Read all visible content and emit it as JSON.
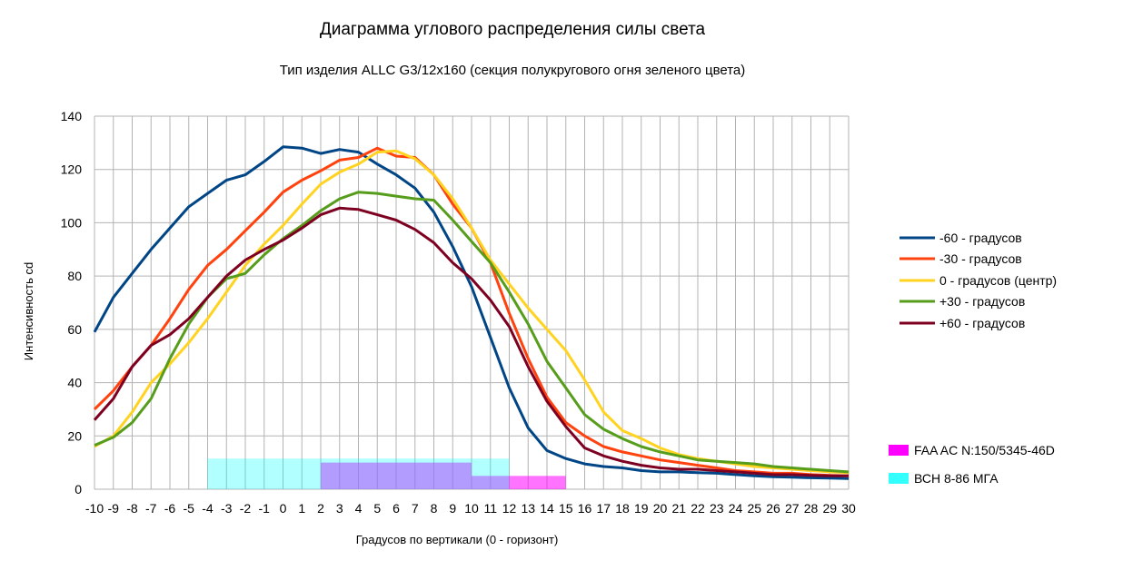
{
  "chart_data": {
    "type": "line",
    "title": "Диаграмма углового распределения силы света",
    "subtitle": "Тип изделия ALLC G3/12x160 (секция полукругового огня зеленого цвета)",
    "xlabel": "Градусов по вертикали (0 - горизонт)",
    "ylabel": "Интенсивность cd",
    "xlim": [
      -10,
      30
    ],
    "ylim": [
      0,
      140
    ],
    "grid": true,
    "legend_placement": "right",
    "x": [
      -10,
      -9,
      -8,
      -7,
      -6,
      -5,
      -4,
      -3,
      -2,
      -1,
      0,
      1,
      2,
      3,
      4,
      5,
      6,
      7,
      8,
      9,
      10,
      11,
      12,
      13,
      14,
      15,
      16,
      17,
      18,
      19,
      20,
      21,
      22,
      23,
      24,
      25,
      26,
      27,
      28,
      29,
      30
    ],
    "x_tick_labels": [
      "-10",
      "-9",
      "-8",
      "-7",
      "-6",
      "-5",
      "-4",
      "-3",
      "-2",
      "-1",
      "0",
      "1",
      "2",
      "3",
      "4",
      "5",
      "6",
      "7",
      "8",
      "9",
      "10",
      "11",
      "12",
      "13",
      "14",
      "15",
      "16",
      "17",
      "18",
      "19",
      "20",
      "21",
      "22",
      "23",
      "24",
      "25",
      "26",
      "27",
      "28",
      "29",
      "30"
    ],
    "y_ticks": [
      0,
      20,
      40,
      60,
      80,
      100,
      120,
      140
    ],
    "y_tick_labels": [
      "0",
      "20",
      "40",
      "60",
      "80",
      "100",
      "120",
      "140"
    ],
    "series": [
      {
        "name": "-60 - градусов",
        "color": "#004586",
        "values": [
          59,
          72,
          81,
          90,
          98,
          106,
          111,
          116,
          118,
          123,
          128.5,
          128,
          126,
          127.5,
          126.5,
          122,
          118,
          113,
          104,
          91,
          76,
          57,
          38,
          23,
          14.5,
          11.5,
          9.5,
          8.5,
          8,
          7,
          6.5,
          6.5,
          6.2,
          6,
          5.5,
          5,
          4.7,
          4.5,
          4.3,
          4.2,
          4
        ]
      },
      {
        "name": "-30 - градусов",
        "color": "#ff420e",
        "values": [
          30,
          37,
          46,
          54,
          64,
          75,
          84,
          90,
          97,
          104,
          111.5,
          116,
          119.5,
          123.5,
          124.5,
          128,
          125,
          124.5,
          118,
          107,
          98,
          85,
          66,
          49,
          34.5,
          25,
          20,
          16,
          14,
          12.5,
          11,
          10,
          9,
          8,
          7,
          6.5,
          6,
          6,
          5.5,
          5.2,
          5
        ]
      },
      {
        "name": "0 - градусов (центр)",
        "color": "#ffd320",
        "values": [
          16,
          20,
          29,
          40,
          47,
          55,
          64,
          74,
          84,
          92,
          99,
          107,
          114.5,
          119,
          122,
          126.5,
          127,
          124,
          118,
          109,
          98,
          86,
          77,
          68,
          60,
          52,
          41,
          29,
          22,
          19,
          15.5,
          13,
          11.5,
          10.5,
          9.5,
          8.5,
          8,
          7.5,
          7,
          6.5,
          6.2
        ]
      },
      {
        "name": "+30 - градусов",
        "color": "#579d1c",
        "values": [
          16.5,
          19.5,
          25,
          34,
          49,
          62,
          72,
          79,
          81,
          88,
          94,
          99,
          104.5,
          109,
          111.5,
          111,
          110,
          109,
          108.5,
          101,
          93,
          85,
          74,
          62,
          48,
          38,
          28,
          22.5,
          19,
          16,
          14,
          12.5,
          11,
          10.5,
          10,
          9.5,
          8.5,
          8,
          7.5,
          7,
          6.5
        ]
      },
      {
        "name": "+60 - градусов",
        "color": "#7e0021",
        "values": [
          26,
          34,
          46,
          54,
          58,
          64,
          72,
          80,
          86,
          90,
          93.5,
          98,
          103,
          105.5,
          105,
          103,
          101,
          97.5,
          92.5,
          85,
          79,
          71,
          61,
          46,
          33,
          23.5,
          15.5,
          12.5,
          10.5,
          9,
          8,
          7.5,
          7.5,
          7,
          6.5,
          6,
          5.5,
          5.5,
          5.2,
          5,
          5
        ]
      }
    ],
    "bands": [
      {
        "name": "FAA AC N:150/5345-46D",
        "color": "#ff00ff",
        "alpha": 0.55,
        "segments": [
          {
            "x0": 2,
            "x1": 10,
            "y": 10
          },
          {
            "x0": 10,
            "x1": 15,
            "y": 5
          }
        ]
      },
      {
        "name": "ВСН 8-86 МГА",
        "color": "#00ffff",
        "alpha": 0.3,
        "segments": [
          {
            "x0": -4,
            "x1": 12,
            "y": 11.5
          }
        ]
      }
    ]
  }
}
